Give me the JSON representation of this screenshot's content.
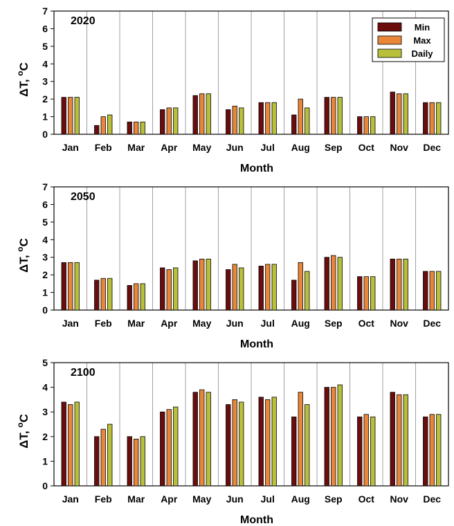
{
  "chart_data": [
    {
      "type": "bar",
      "title": "2020",
      "xlabel": "Month",
      "ylabel": "ΔT, ",
      "ylabel_sup": "o",
      "ylabel_tail": "C",
      "ylim": [
        0,
        7
      ],
      "yticks": [
        "0",
        "1",
        "2",
        "3",
        "4",
        "5",
        "6",
        "7"
      ],
      "grid": "vertical",
      "legend_position": "top-right",
      "categories": [
        "Jan",
        "Feb",
        "Mar",
        "Apr",
        "May",
        "Jun",
        "Jul",
        "Aug",
        "Sep",
        "Oct",
        "Nov",
        "Dec"
      ],
      "series": [
        {
          "name": "Min",
          "color": "#6b0d0d",
          "values": [
            2.1,
            0.5,
            0.7,
            1.4,
            2.2,
            1.4,
            1.8,
            1.1,
            2.1,
            1.0,
            2.4,
            1.8
          ]
        },
        {
          "name": "Max",
          "color": "#e8873a",
          "values": [
            2.1,
            1.0,
            0.7,
            1.5,
            2.3,
            1.6,
            1.8,
            2.0,
            2.1,
            1.0,
            2.3,
            1.8
          ]
        },
        {
          "name": "Daily",
          "color": "#b8bf3a",
          "values": [
            2.1,
            1.1,
            0.7,
            1.5,
            2.3,
            1.5,
            1.8,
            1.5,
            2.1,
            1.0,
            2.3,
            1.8
          ]
        }
      ]
    },
    {
      "type": "bar",
      "title": "2050",
      "xlabel": "Month",
      "ylabel": "ΔT, ",
      "ylabel_sup": "o",
      "ylabel_tail": "C",
      "ylim": [
        0,
        7
      ],
      "yticks": [
        "0",
        "1",
        "2",
        "3",
        "4",
        "5",
        "6",
        "7"
      ],
      "grid": "vertical",
      "categories": [
        "Jan",
        "Feb",
        "Mar",
        "Apr",
        "May",
        "Jun",
        "Jul",
        "Aug",
        "Sep",
        "Oct",
        "Nov",
        "Dec"
      ],
      "series": [
        {
          "color": "#6b0d0d",
          "values": [
            2.7,
            1.7,
            1.4,
            2.4,
            2.8,
            2.3,
            2.5,
            1.7,
            3.0,
            1.9,
            2.9,
            2.2
          ]
        },
        {
          "color": "#e8873a",
          "values": [
            2.7,
            1.8,
            1.5,
            2.3,
            2.9,
            2.6,
            2.6,
            2.7,
            3.1,
            1.9,
            2.9,
            2.2
          ]
        },
        {
          "color": "#b8bf3a",
          "values": [
            2.7,
            1.8,
            1.5,
            2.4,
            2.9,
            2.4,
            2.6,
            2.2,
            3.0,
            1.9,
            2.9,
            2.2
          ]
        }
      ]
    },
    {
      "type": "bar",
      "title": "2100",
      "xlabel": "Month",
      "ylabel": "ΔT, ",
      "ylabel_sup": "o",
      "ylabel_tail": "C",
      "ylim": [
        0,
        5
      ],
      "yticks": [
        "0",
        "1",
        "2",
        "3",
        "4",
        "5"
      ],
      "grid": "vertical",
      "categories": [
        "Jan",
        "Feb",
        "Mar",
        "Apr",
        "May",
        "Jun",
        "Jul",
        "Aug",
        "Sep",
        "Oct",
        "Nov",
        "Dec"
      ],
      "series": [
        {
          "color": "#6b0d0d",
          "values": [
            3.4,
            2.0,
            2.0,
            3.0,
            3.8,
            3.3,
            3.6,
            2.8,
            4.0,
            2.8,
            3.8,
            2.8
          ]
        },
        {
          "color": "#e8873a",
          "values": [
            3.3,
            2.3,
            1.9,
            3.1,
            3.9,
            3.5,
            3.5,
            3.8,
            4.0,
            2.9,
            3.7,
            2.9
          ]
        },
        {
          "color": "#b8bf3a",
          "values": [
            3.4,
            2.5,
            2.0,
            3.2,
            3.8,
            3.4,
            3.6,
            3.3,
            4.1,
            2.8,
            3.7,
            2.9
          ]
        }
      ]
    }
  ]
}
